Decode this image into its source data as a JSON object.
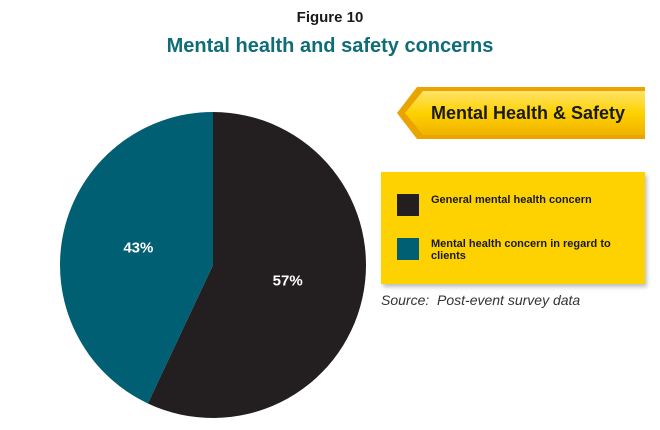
{
  "figure_label": "Figure 10",
  "colors": {
    "teal": "#005f73",
    "dark": "#231f20",
    "accent": "#fdd200",
    "title": "#0f6d78"
  },
  "banner": {
    "label": "Mental Health & Safety"
  },
  "source": {
    "text": "Source:  Post-event survey data"
  },
  "chart_data": {
    "type": "pie",
    "title": "Mental health and safety concerns",
    "start_angle_deg": 0,
    "direction": "clockwise",
    "slices": [
      {
        "label": "General mental health concern",
        "value": 57,
        "display": "57%",
        "color": "#231f20"
      },
      {
        "label": "Mental health concern in regard to clients",
        "value": 43,
        "display": "43%",
        "color": "#005f73"
      }
    ],
    "legend_placement": "right"
  }
}
